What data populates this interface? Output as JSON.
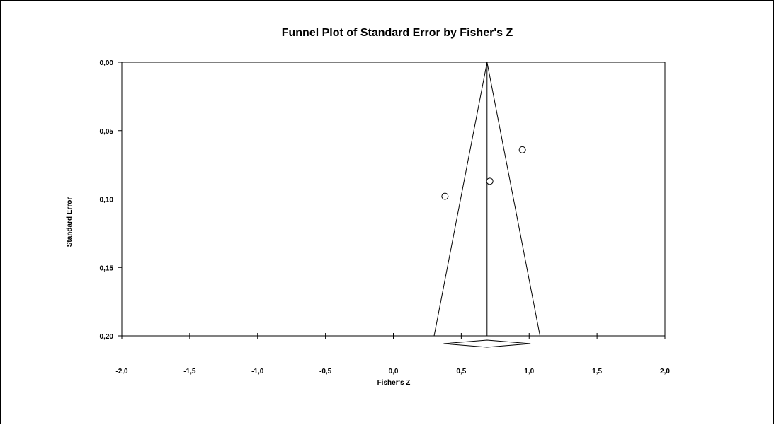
{
  "chart_data": {
    "type": "scatter",
    "title": "Funnel Plot of Standard Error by Fisher's Z",
    "xlabel": "Fisher's Z",
    "ylabel": "Standard Error",
    "xlim": [
      -2.0,
      2.0
    ],
    "ylim": [
      0.0,
      0.2
    ],
    "y_inverted": true,
    "grid": false,
    "x_ticks": [
      "-2,0",
      "-1,5",
      "-1,0",
      "-0,5",
      "0,0",
      "0,5",
      "1,0",
      "1,5",
      "2,0"
    ],
    "x_tick_values": [
      -2.0,
      -1.5,
      -1.0,
      -0.5,
      0.0,
      0.5,
      1.0,
      1.5,
      2.0
    ],
    "y_ticks": [
      "0,00",
      "0,05",
      "0,10",
      "0,15",
      "0,20"
    ],
    "y_tick_values": [
      0.0,
      0.05,
      0.1,
      0.15,
      0.2
    ],
    "points": [
      {
        "x": 0.38,
        "y": 0.098
      },
      {
        "x": 0.71,
        "y": 0.087
      },
      {
        "x": 0.95,
        "y": 0.064
      }
    ],
    "summary_effect": 0.69,
    "funnel_at_max_se": [
      0.3,
      1.08
    ],
    "diamond": {
      "center": 0.69,
      "lower": 0.37,
      "upper": 1.01
    }
  }
}
